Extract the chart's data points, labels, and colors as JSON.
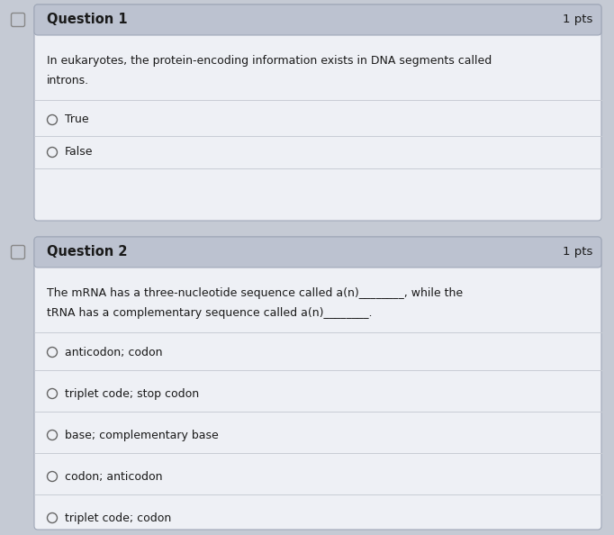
{
  "bg_color": "#c5cad4",
  "card_bg": "#eef0f5",
  "header_bg": "#bcc2d0",
  "border_color": "#a0a8b8",
  "sep_color": "#c8ccd4",
  "text_color": "#1a1a1a",
  "radio_color": "#666666",
  "question1_header": "Question 1",
  "question1_pts": "1 pts",
  "question1_body1": "In eukaryotes, the protein-encoding information exists in DNA segments called",
  "question1_body2": "introns.",
  "question1_options": [
    "True",
    "False"
  ],
  "question2_header": "Question 2",
  "question2_pts": "1 pts",
  "question2_body1": "The mRNA has a three-nucleotide sequence called a(n)________, while the",
  "question2_body2": "tRNA has a complementary sequence called a(n)________.",
  "question2_options": [
    "anticodon; codon",
    "triplet code; stop codon",
    "base; complementary base",
    "codon; anticodon",
    "triplet code; codon"
  ],
  "figwidth": 6.82,
  "figheight": 5.94,
  "dpi": 100
}
